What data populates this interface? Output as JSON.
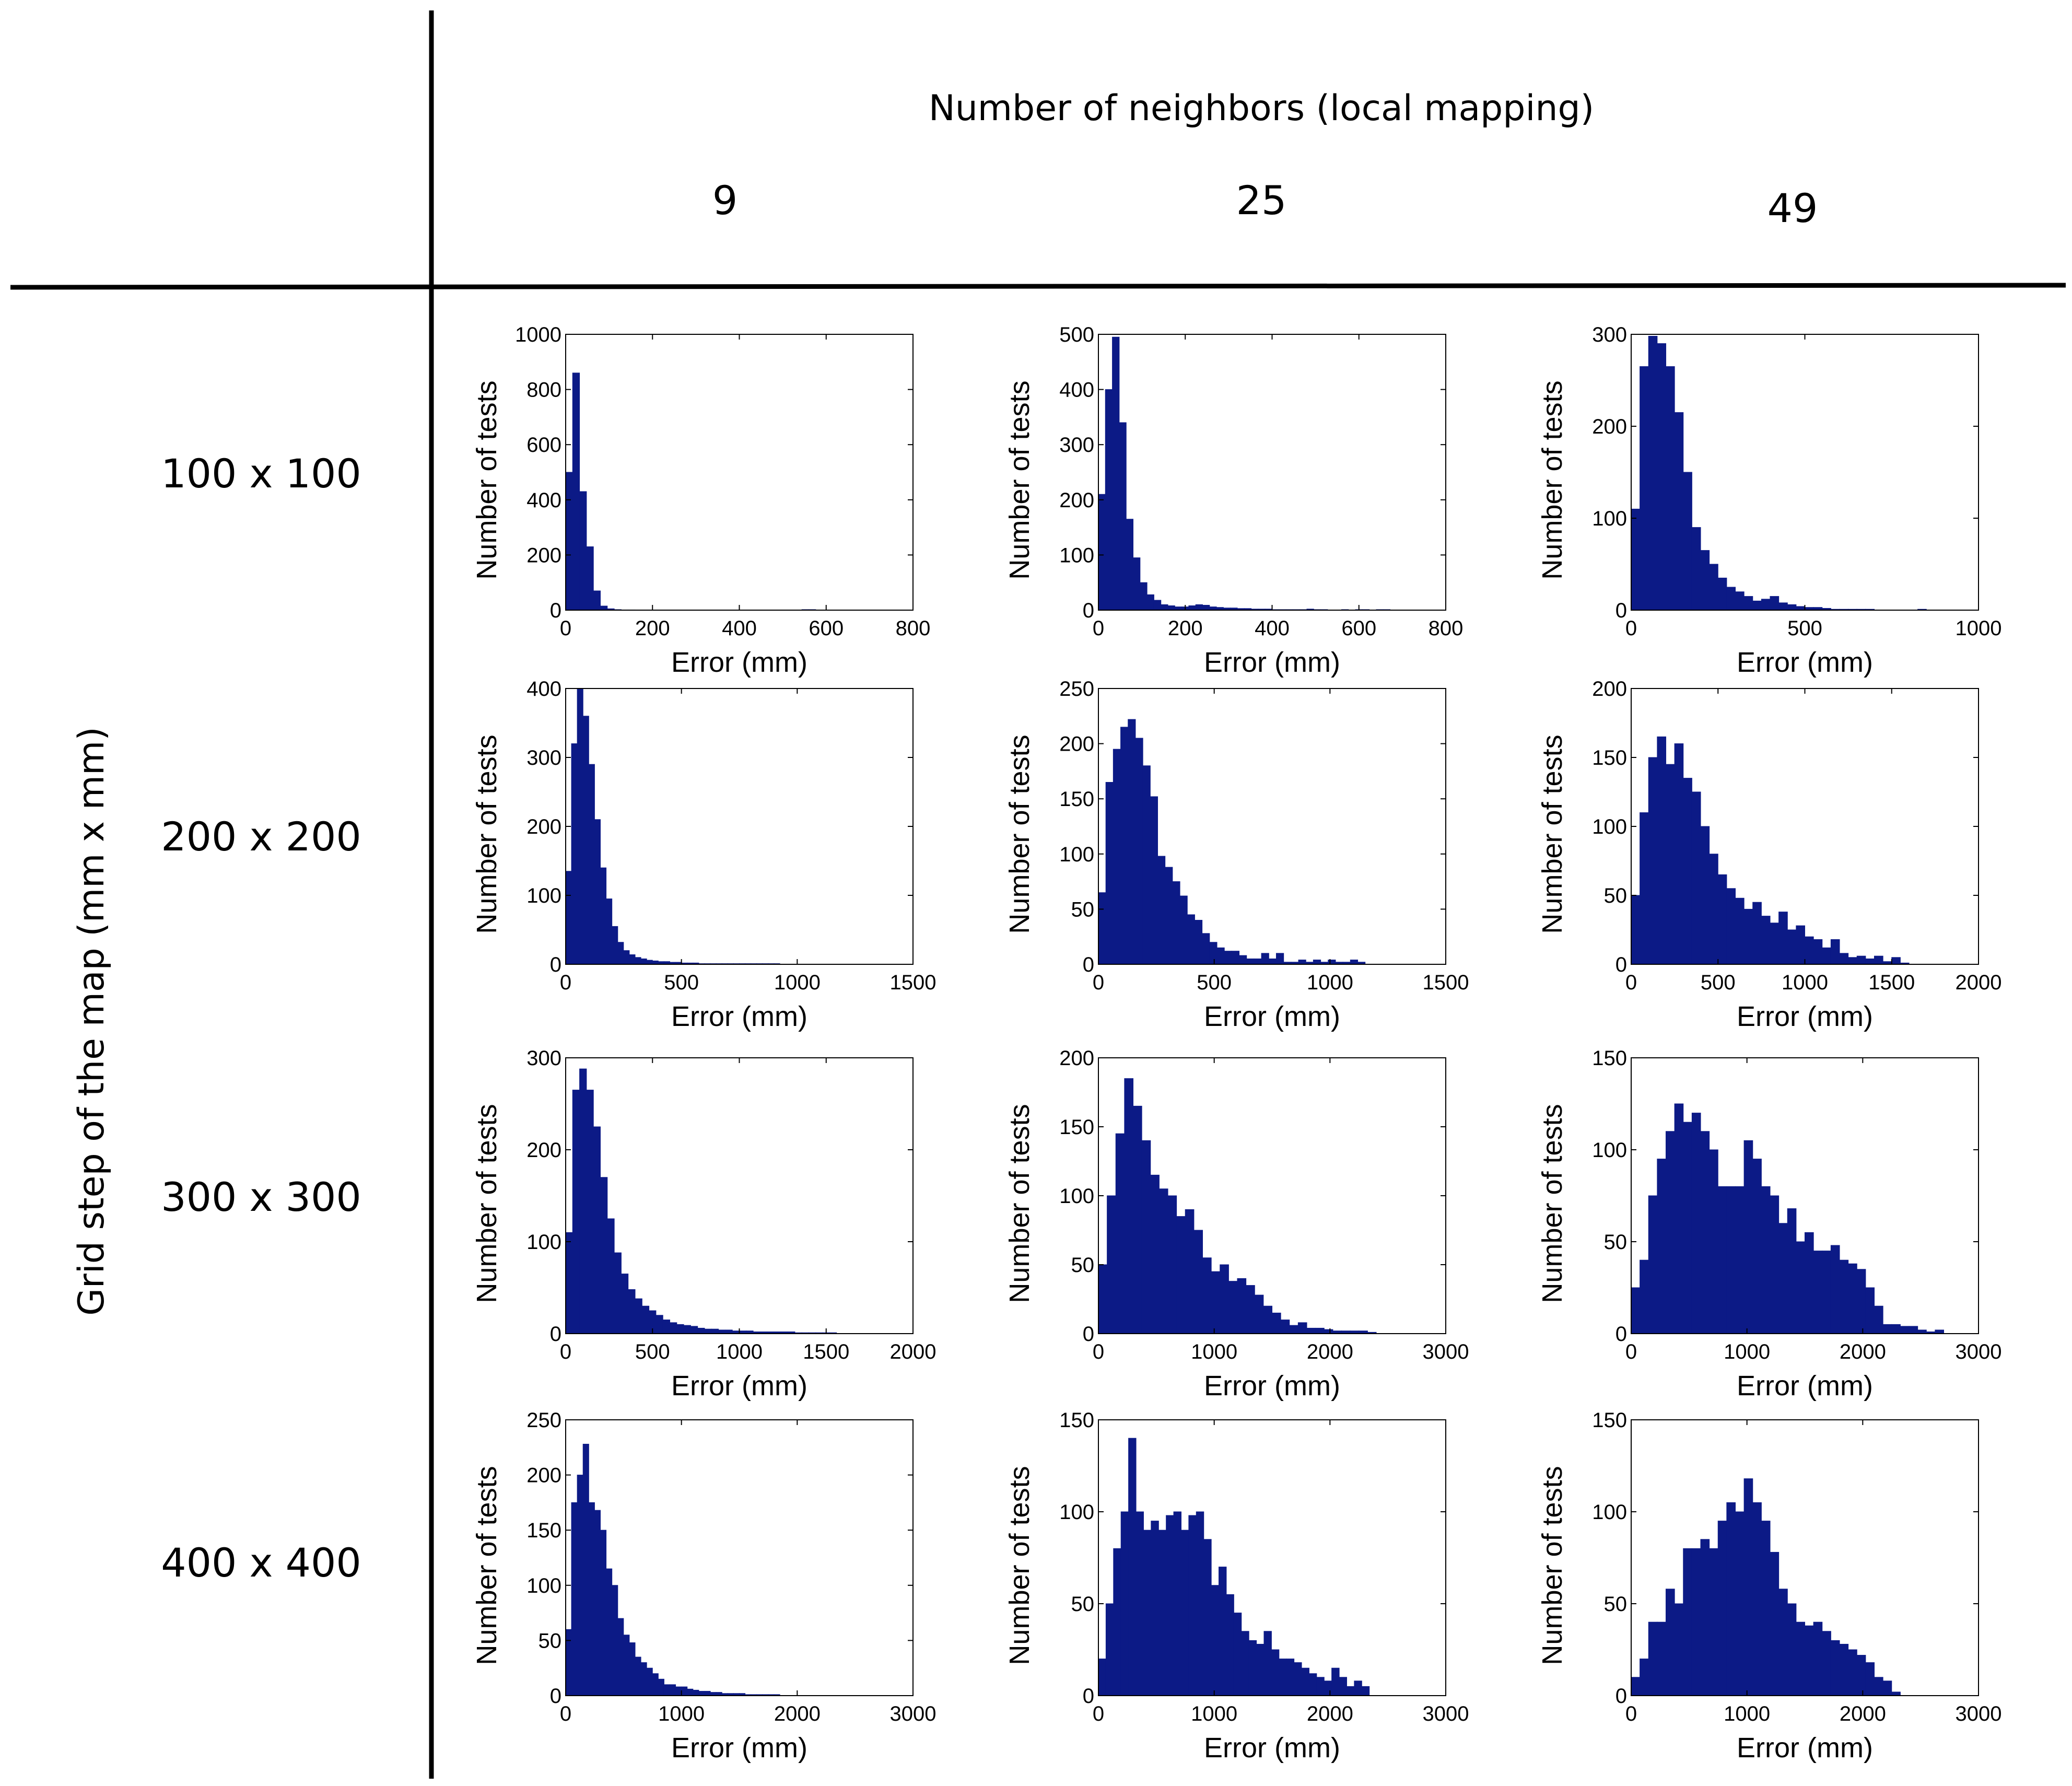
{
  "header": {
    "title": "Number of neighbors (local mapping)",
    "columns": [
      "9",
      "25",
      "49"
    ]
  },
  "rows_axis": {
    "title": "Grid step of the map (mm x mm)",
    "rows": [
      "100 x 100",
      "200 x 200",
      "300 x 300",
      "400 x 400"
    ]
  },
  "chart_data": [
    {
      "type": "bar",
      "grid": "100 x 100",
      "neighbors": "9",
      "xlabel": "Error (mm)",
      "ylabel": "Number of tests",
      "xlim": [
        0,
        800
      ],
      "ylim": [
        0,
        1000
      ],
      "xticks": [
        0,
        200,
        400,
        600,
        800
      ],
      "yticks": [
        0,
        200,
        400,
        600,
        800,
        1000
      ],
      "bin_width": 16,
      "bin_start": 0,
      "values": [
        500,
        860,
        430,
        230,
        70,
        15,
        5,
        2,
        1,
        1,
        0,
        0,
        0,
        0,
        0,
        0,
        0,
        0,
        0,
        0,
        0,
        0,
        0,
        0,
        0,
        0,
        0,
        0,
        0,
        0,
        0,
        0,
        0,
        0,
        2,
        2,
        0,
        0,
        0,
        0,
        0,
        0,
        0,
        0,
        0,
        0,
        0,
        0,
        0,
        0,
        0,
        0,
        0,
        0,
        0,
        0,
        0,
        0,
        0,
        0,
        0,
        0,
        0,
        0,
        0,
        0,
        0,
        0,
        0,
        0,
        0,
        0,
        0,
        0,
        0,
        0,
        0,
        0,
        0,
        0,
        0,
        0,
        0,
        0,
        0,
        0,
        0,
        0,
        0,
        0,
        0,
        0,
        0,
        0,
        0,
        0,
        0,
        0,
        0,
        0
      ],
      "end_bin": 41
    },
    {
      "type": "bar",
      "grid": "100 x 100",
      "neighbors": "25",
      "xlabel": "Error (mm)",
      "ylabel": "Number of tests",
      "xlim": [
        0,
        800
      ],
      "ylim": [
        0,
        500
      ],
      "xticks": [
        0,
        200,
        400,
        600,
        800
      ],
      "yticks": [
        0,
        100,
        200,
        300,
        400,
        500
      ],
      "bin_width": 16,
      "bin_start": 0,
      "values": [
        210,
        400,
        495,
        340,
        165,
        95,
        50,
        28,
        18,
        10,
        8,
        6,
        6,
        8,
        10,
        9,
        6,
        5,
        4,
        4,
        3,
        3,
        2,
        2,
        2,
        1,
        1,
        1,
        1,
        1,
        2,
        1,
        1,
        0,
        0,
        1,
        0,
        1,
        1,
        0,
        1,
        1,
        0,
        0,
        0
      ]
    },
    {
      "type": "bar",
      "grid": "100 x 100",
      "neighbors": "49",
      "xlabel": "Error (mm)",
      "ylabel": "Number of tests",
      "xlim": [
        0,
        1000
      ],
      "ylim": [
        0,
        300
      ],
      "xticks": [
        0,
        500,
        1000
      ],
      "yticks": [
        0,
        100,
        200,
        300
      ],
      "bin_width": 25,
      "bin_start": 0,
      "values": [
        110,
        265,
        298,
        290,
        265,
        215,
        150,
        90,
        65,
        50,
        35,
        25,
        20,
        15,
        10,
        12,
        15,
        8,
        6,
        4,
        3,
        3,
        2,
        1,
        1,
        1,
        1,
        1,
        0,
        0,
        0,
        0,
        0,
        1,
        0,
        0,
        0,
        0,
        0,
        0
      ]
    },
    {
      "type": "bar",
      "grid": "200 x 200",
      "neighbors": "9",
      "xlabel": "Error (mm)",
      "ylabel": "Number of tests",
      "xlim": [
        0,
        1500
      ],
      "ylim": [
        0,
        400
      ],
      "xticks": [
        0,
        500,
        1000,
        1500
      ],
      "yticks": [
        0,
        100,
        200,
        300,
        400
      ],
      "bin_width": 25,
      "bin_start": 0,
      "values": [
        135,
        320,
        400,
        360,
        290,
        210,
        140,
        95,
        55,
        32,
        20,
        14,
        10,
        8,
        6,
        5,
        4,
        4,
        3,
        3,
        2,
        2,
        2,
        1,
        1,
        1,
        1,
        1,
        1,
        1,
        1,
        1,
        1,
        1,
        1,
        1,
        1,
        0,
        0,
        0,
        0,
        0,
        0,
        0,
        0,
        0,
        0,
        0,
        0,
        0,
        0,
        0,
        0,
        0,
        0,
        0,
        0,
        0,
        0,
        0
      ]
    },
    {
      "type": "bar",
      "grid": "200 x 200",
      "neighbors": "25",
      "xlabel": "Error (mm)",
      "ylabel": "Number of tests",
      "xlim": [
        0,
        1500
      ],
      "ylim": [
        0,
        250
      ],
      "xticks": [
        0,
        500,
        1000,
        1500
      ],
      "yticks": [
        0,
        50,
        100,
        150,
        200,
        250
      ],
      "bin_width": 32,
      "bin_start": 0,
      "values": [
        65,
        165,
        195,
        215,
        222,
        205,
        180,
        152,
        98,
        88,
        75,
        62,
        45,
        40,
        28,
        20,
        15,
        12,
        12,
        8,
        5,
        5,
        10,
        5,
        10,
        2,
        2,
        4,
        2,
        4,
        2,
        4,
        2,
        2,
        4,
        2,
        0,
        0
      ]
    },
    {
      "type": "bar",
      "grid": "200 x 200",
      "neighbors": "49",
      "xlabel": "Error (mm)",
      "ylabel": "Number of tests",
      "xlim": [
        0,
        2000
      ],
      "ylim": [
        0,
        200
      ],
      "xticks": [
        0,
        500,
        1000,
        1500,
        2000
      ],
      "yticks": [
        0,
        50,
        100,
        150,
        200
      ],
      "bin_width": 50,
      "bin_start": 0,
      "values": [
        50,
        110,
        150,
        165,
        145,
        160,
        135,
        125,
        100,
        80,
        65,
        55,
        48,
        40,
        45,
        35,
        30,
        38,
        25,
        28,
        20,
        18,
        12,
        18,
        8,
        5,
        6,
        4,
        6,
        2,
        5,
        1,
        0,
        0,
        0,
        0,
        0,
        0,
        0,
        0
      ]
    },
    {
      "type": "bar",
      "grid": "300 x 300",
      "neighbors": "9",
      "xlabel": "Error (mm)",
      "ylabel": "Number of tests",
      "xlim": [
        0,
        2000
      ],
      "ylim": [
        0,
        300
      ],
      "xticks": [
        0,
        500,
        1000,
        1500,
        2000
      ],
      "yticks": [
        0,
        100,
        200,
        300
      ],
      "bin_width": 40,
      "bin_start": 0,
      "values": [
        110,
        265,
        288,
        265,
        225,
        170,
        125,
        88,
        65,
        48,
        38,
        30,
        25,
        20,
        15,
        12,
        10,
        9,
        8,
        6,
        5,
        5,
        4,
        4,
        3,
        3,
        3,
        2,
        2,
        2,
        2,
        2,
        2,
        1,
        1,
        1,
        1,
        1,
        1,
        0,
        0,
        0,
        0,
        0,
        0,
        0,
        0,
        0,
        0,
        0
      ]
    },
    {
      "type": "bar",
      "grid": "300 x 300",
      "neighbors": "25",
      "xlabel": "Error (mm)",
      "ylabel": "Number of tests",
      "xlim": [
        0,
        3000
      ],
      "ylim": [
        0,
        200
      ],
      "xticks": [
        0,
        1000,
        2000,
        3000
      ],
      "yticks": [
        0,
        50,
        100,
        150,
        200
      ],
      "bin_width": 75,
      "bin_start": 0,
      "values": [
        50,
        100,
        145,
        185,
        165,
        140,
        115,
        105,
        100,
        85,
        90,
        75,
        55,
        45,
        50,
        38,
        40,
        35,
        28,
        20,
        15,
        10,
        6,
        8,
        4,
        4,
        3,
        2,
        2,
        2,
        2,
        1,
        0,
        0,
        0,
        0,
        0,
        0,
        0,
        0
      ]
    },
    {
      "type": "bar",
      "grid": "300 x 300",
      "neighbors": "49",
      "xlabel": "Error (mm)",
      "ylabel": "Number of tests",
      "xlim": [
        0,
        3000
      ],
      "ylim": [
        0,
        150
      ],
      "xticks": [
        0,
        1000,
        2000,
        3000
      ],
      "yticks": [
        0,
        50,
        100,
        150
      ],
      "bin_width": 75,
      "bin_start": 0,
      "values": [
        25,
        40,
        75,
        95,
        110,
        125,
        115,
        120,
        110,
        100,
        80,
        80,
        80,
        105,
        95,
        80,
        75,
        60,
        68,
        50,
        55,
        45,
        45,
        48,
        40,
        38,
        35,
        25,
        15,
        5,
        5,
        4,
        4,
        2,
        1,
        2,
        0,
        0,
        0,
        0
      ]
    },
    {
      "type": "bar",
      "grid": "400 x 400",
      "neighbors": "9",
      "xlabel": "Error (mm)",
      "ylabel": "Number of tests",
      "xlim": [
        0,
        3000
      ],
      "ylim": [
        0,
        250
      ],
      "xticks": [
        0,
        1000,
        2000,
        3000
      ],
      "yticks": [
        0,
        50,
        100,
        150,
        200,
        250
      ],
      "bin_width": 50,
      "bin_start": 0,
      "values": [
        60,
        175,
        200,
        228,
        175,
        168,
        150,
        115,
        100,
        70,
        55,
        48,
        35,
        30,
        25,
        20,
        15,
        10,
        10,
        8,
        8,
        6,
        5,
        4,
        4,
        3,
        3,
        2,
        2,
        2,
        2,
        1,
        1,
        1,
        1,
        1,
        1,
        0,
        0,
        0,
        0,
        0,
        0,
        0,
        0,
        0,
        0,
        0,
        0,
        0,
        0,
        0,
        0,
        0,
        0,
        0,
        0,
        0,
        0,
        0
      ]
    },
    {
      "type": "bar",
      "grid": "400 x 400",
      "neighbors": "25",
      "xlabel": "Error (mm)",
      "ylabel": "Number of tests",
      "xlim": [
        0,
        3000
      ],
      "ylim": [
        0,
        150
      ],
      "xticks": [
        0,
        1000,
        2000,
        3000
      ],
      "yticks": [
        0,
        50,
        100,
        150
      ],
      "bin_width": 65,
      "bin_start": 0,
      "values": [
        20,
        50,
        80,
        100,
        140,
        100,
        90,
        95,
        90,
        98,
        100,
        90,
        98,
        100,
        85,
        60,
        70,
        55,
        45,
        35,
        30,
        28,
        35,
        25,
        20,
        20,
        18,
        15,
        12,
        10,
        8,
        15,
        10,
        5,
        8,
        5,
        0,
        0,
        0,
        0,
        0,
        0,
        0,
        0,
        0,
        0
      ]
    },
    {
      "type": "bar",
      "grid": "400 x 400",
      "neighbors": "49",
      "xlabel": "Error (mm)",
      "ylabel": "Number of tests",
      "xlim": [
        0,
        3000
      ],
      "ylim": [
        0,
        150
      ],
      "xticks": [
        0,
        1000,
        2000,
        3000
      ],
      "yticks": [
        0,
        50,
        100,
        150
      ],
      "bin_width": 75,
      "bin_start": 0,
      "values": [
        10,
        20,
        40,
        40,
        58,
        50,
        80,
        80,
        85,
        80,
        95,
        105,
        100,
        118,
        105,
        95,
        78,
        58,
        50,
        40,
        38,
        40,
        35,
        30,
        28,
        25,
        22,
        18,
        10,
        8,
        2,
        0,
        0,
        0,
        0,
        0,
        0,
        0,
        0,
        0
      ]
    }
  ]
}
